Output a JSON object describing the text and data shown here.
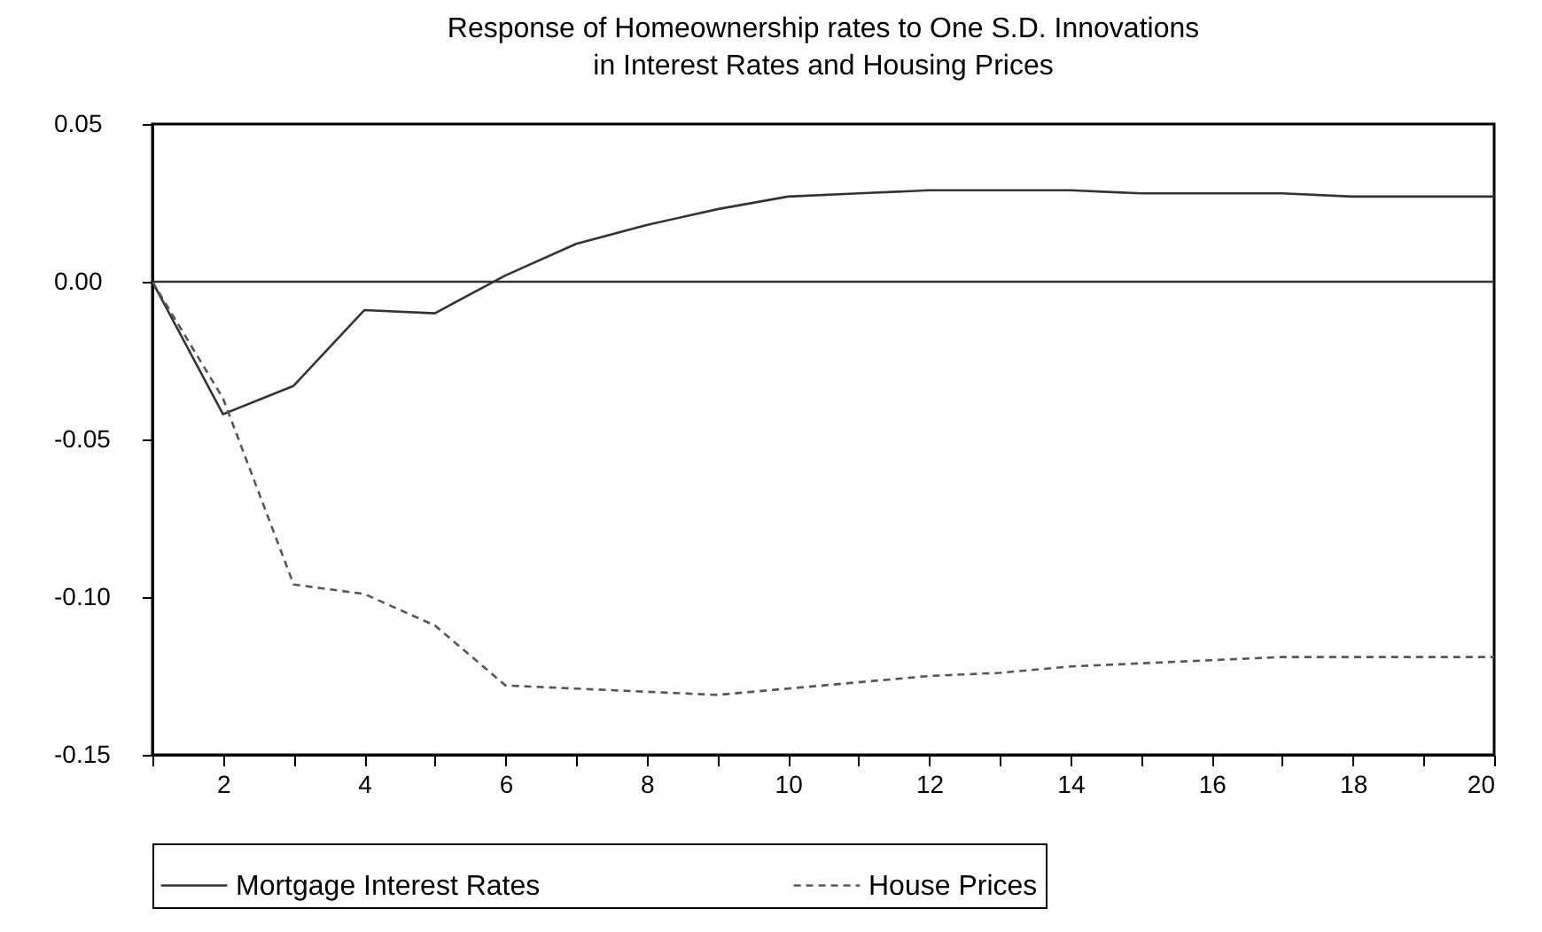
{
  "chart_data": {
    "type": "line",
    "title": [
      "Response of Homeownership rates to One S.D. Innovations",
      "in Interest Rates and Housing Prices"
    ],
    "x": [
      1,
      2,
      3,
      4,
      5,
      6,
      7,
      8,
      9,
      10,
      11,
      12,
      13,
      14,
      15,
      16,
      17,
      18,
      19,
      20
    ],
    "series": [
      {
        "name": "Mortgage Interest Rates",
        "color": "#333333",
        "line_style": "solid",
        "values": [
          0,
          -0.042,
          -0.033,
          -0.009,
          -0.01,
          0.002,
          0.012,
          0.018,
          0.023,
          0.027,
          0.028,
          0.029,
          0.029,
          0.029,
          0.028,
          0.028,
          0.028,
          0.027,
          0.027,
          0.027
        ]
      },
      {
        "name": "House Prices",
        "color": "#555555",
        "line_style": "dashed",
        "values": [
          0,
          -0.037,
          -0.096,
          -0.099,
          -0.109,
          -0.128,
          -0.129,
          -0.13,
          -0.131,
          -0.129,
          -0.127,
          -0.125,
          -0.124,
          -0.122,
          -0.121,
          -0.12,
          -0.119,
          -0.119,
          -0.119,
          -0.119
        ]
      }
    ],
    "xlim": [
      1,
      20
    ],
    "xticks": [
      {
        "value": 1,
        "label": null
      },
      2,
      {
        "value": 3,
        "label": null
      },
      4,
      {
        "value": 5,
        "label": null
      },
      6,
      {
        "value": 7,
        "label": null
      },
      8,
      {
        "value": 9,
        "label": null
      },
      10,
      {
        "value": 11,
        "label": null
      },
      12,
      {
        "value": 13,
        "label": null
      },
      14,
      {
        "value": 15,
        "label": null
      },
      16,
      {
        "value": 17,
        "label": null
      },
      18,
      {
        "value": 19,
        "label": null
      },
      20
    ],
    "ylim": [
      -0.15,
      0.05
    ],
    "yticks": [
      {
        "value": 0.05,
        "label": "0.05"
      },
      {
        "value": 0,
        "label": "0.00"
      },
      {
        "value": -0.05,
        "label": "-0.05"
      },
      {
        "value": -0.1,
        "label": "-0.10"
      },
      {
        "value": -0.15,
        "label": "-0.15"
      }
    ],
    "ref_lines": [
      {
        "axis": "y",
        "value": 0,
        "label": null,
        "color": "#333333"
      }
    ],
    "grid": false,
    "legend": "bottom"
  }
}
